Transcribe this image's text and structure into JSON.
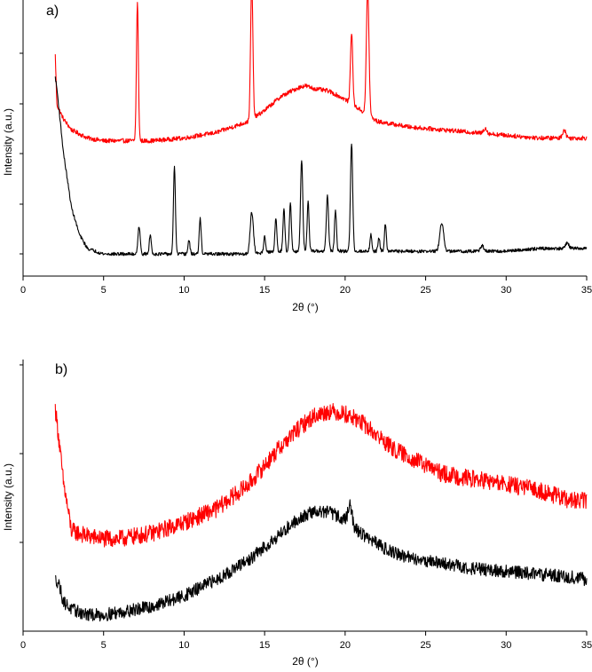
{
  "chart_data": [
    {
      "type": "line",
      "panel_label": "a)",
      "xlabel": "2θ (°)",
      "ylabel": "Intensity (a.u.)",
      "xlim": [
        0,
        35
      ],
      "xticks": [
        0,
        5,
        10,
        15,
        20,
        25,
        30,
        35
      ],
      "ylim": [
        0,
        1
      ],
      "y_tick_marks_only": true,
      "grid": false,
      "series": [
        {
          "color": "#ff0000",
          "baseline": [
            [
              2.0,
              0.8
            ],
            [
              2.1,
              0.62
            ],
            [
              2.5,
              0.57
            ],
            [
              3.0,
              0.53
            ],
            [
              4.0,
              0.5
            ],
            [
              5.0,
              0.49
            ],
            [
              6.0,
              0.49
            ],
            [
              7.0,
              0.49
            ],
            [
              8.0,
              0.49
            ],
            [
              10.0,
              0.5
            ],
            [
              12.0,
              0.52
            ],
            [
              14.0,
              0.56
            ],
            [
              15.0,
              0.6
            ],
            [
              16.0,
              0.65
            ],
            [
              17.0,
              0.68
            ],
            [
              17.5,
              0.69
            ],
            [
              18.0,
              0.68
            ],
            [
              19.0,
              0.67
            ],
            [
              20.0,
              0.64
            ],
            [
              21.0,
              0.6
            ],
            [
              22.0,
              0.56
            ],
            [
              24.0,
              0.54
            ],
            [
              26.0,
              0.53
            ],
            [
              28.0,
              0.52
            ],
            [
              30.0,
              0.51
            ],
            [
              32.0,
              0.5
            ],
            [
              34.0,
              0.5
            ],
            [
              35.0,
              0.5
            ]
          ],
          "peaks": [
            [
              7.1,
              0.5,
              0.06
            ],
            [
              14.2,
              0.5,
              0.07
            ],
            [
              20.4,
              0.26,
              0.07
            ],
            [
              21.4,
              0.46,
              0.08
            ],
            [
              33.6,
              0.03,
              0.1
            ],
            [
              28.7,
              0.02,
              0.1
            ]
          ],
          "noise": 0.008
        },
        {
          "color": "#000000",
          "baseline": [
            [
              2.0,
              0.72
            ],
            [
              2.1,
              0.68
            ],
            [
              2.5,
              0.45
            ],
            [
              3.0,
              0.25
            ],
            [
              3.5,
              0.15
            ],
            [
              4.0,
              0.1
            ],
            [
              5.0,
              0.08
            ],
            [
              6.0,
              0.08
            ],
            [
              8.0,
              0.08
            ],
            [
              10.0,
              0.08
            ],
            [
              12.0,
              0.08
            ],
            [
              14.0,
              0.08
            ],
            [
              16.0,
              0.09
            ],
            [
              18.0,
              0.09
            ],
            [
              20.0,
              0.09
            ],
            [
              22.0,
              0.09
            ],
            [
              24.0,
              0.09
            ],
            [
              26.0,
              0.09
            ],
            [
              28.0,
              0.09
            ],
            [
              30.0,
              0.09
            ],
            [
              32.0,
              0.1
            ],
            [
              35.0,
              0.1
            ]
          ],
          "peaks": [
            [
              7.2,
              0.1,
              0.07
            ],
            [
              7.9,
              0.07,
              0.06
            ],
            [
              9.4,
              0.32,
              0.06
            ],
            [
              10.3,
              0.05,
              0.06
            ],
            [
              11.0,
              0.13,
              0.06
            ],
            [
              14.2,
              0.15,
              0.1
            ],
            [
              15.0,
              0.06,
              0.06
            ],
            [
              15.7,
              0.12,
              0.06
            ],
            [
              16.2,
              0.15,
              0.06
            ],
            [
              16.6,
              0.18,
              0.06
            ],
            [
              17.3,
              0.33,
              0.07
            ],
            [
              17.7,
              0.18,
              0.06
            ],
            [
              18.9,
              0.2,
              0.07
            ],
            [
              19.4,
              0.15,
              0.06
            ],
            [
              20.4,
              0.39,
              0.07
            ],
            [
              21.6,
              0.06,
              0.06
            ],
            [
              22.1,
              0.05,
              0.06
            ],
            [
              22.5,
              0.1,
              0.06
            ],
            [
              26.0,
              0.1,
              0.12
            ],
            [
              28.5,
              0.02,
              0.1
            ],
            [
              33.8,
              0.02,
              0.1
            ]
          ],
          "noise": 0.006
        }
      ]
    },
    {
      "type": "line",
      "panel_label": "b)",
      "xlabel": "2θ (°)",
      "ylabel": "Intensity (a.u.)",
      "xlim": [
        0,
        35
      ],
      "xticks": [
        0,
        5,
        10,
        15,
        20,
        25,
        30,
        35
      ],
      "ylim": [
        0,
        1
      ],
      "y_tick_marks_only": true,
      "grid": false,
      "series": [
        {
          "color": "#ff0000",
          "baseline": [
            [
              2.0,
              0.82
            ],
            [
              2.2,
              0.72
            ],
            [
              2.5,
              0.55
            ],
            [
              3.0,
              0.37
            ],
            [
              4.0,
              0.35
            ],
            [
              5.0,
              0.34
            ],
            [
              6.0,
              0.34
            ],
            [
              8.0,
              0.36
            ],
            [
              10.0,
              0.4
            ],
            [
              12.0,
              0.45
            ],
            [
              14.0,
              0.54
            ],
            [
              15.0,
              0.61
            ],
            [
              16.0,
              0.68
            ],
            [
              17.0,
              0.74
            ],
            [
              18.0,
              0.79
            ],
            [
              19.0,
              0.81
            ],
            [
              20.0,
              0.8
            ],
            [
              21.0,
              0.77
            ],
            [
              22.0,
              0.72
            ],
            [
              23.0,
              0.67
            ],
            [
              24.0,
              0.64
            ],
            [
              25.0,
              0.61
            ],
            [
              26.0,
              0.58
            ],
            [
              27.0,
              0.57
            ],
            [
              28.0,
              0.56
            ],
            [
              30.0,
              0.54
            ],
            [
              32.0,
              0.52
            ],
            [
              33.0,
              0.5
            ],
            [
              34.0,
              0.48
            ],
            [
              35.0,
              0.48
            ]
          ],
          "peaks": [],
          "noise": 0.032
        },
        {
          "color": "#000000",
          "baseline": [
            [
              2.0,
              0.19
            ],
            [
              2.2,
              0.18
            ],
            [
              2.5,
              0.11
            ],
            [
              3.0,
              0.08
            ],
            [
              4.0,
              0.06
            ],
            [
              5.0,
              0.06
            ],
            [
              6.0,
              0.07
            ],
            [
              8.0,
              0.09
            ],
            [
              10.0,
              0.13
            ],
            [
              12.0,
              0.19
            ],
            [
              14.0,
              0.26
            ],
            [
              15.0,
              0.31
            ],
            [
              16.0,
              0.36
            ],
            [
              17.0,
              0.41
            ],
            [
              18.0,
              0.44
            ],
            [
              19.0,
              0.44
            ],
            [
              20.0,
              0.41
            ],
            [
              21.0,
              0.36
            ],
            [
              22.0,
              0.32
            ],
            [
              23.0,
              0.29
            ],
            [
              24.0,
              0.27
            ],
            [
              25.0,
              0.26
            ],
            [
              26.0,
              0.25
            ],
            [
              28.0,
              0.23
            ],
            [
              30.0,
              0.22
            ],
            [
              32.0,
              0.21
            ],
            [
              34.0,
              0.2
            ],
            [
              35.0,
              0.19
            ]
          ],
          "peaks": [
            [
              20.3,
              0.07,
              0.12
            ]
          ],
          "noise": 0.024
        }
      ]
    }
  ]
}
